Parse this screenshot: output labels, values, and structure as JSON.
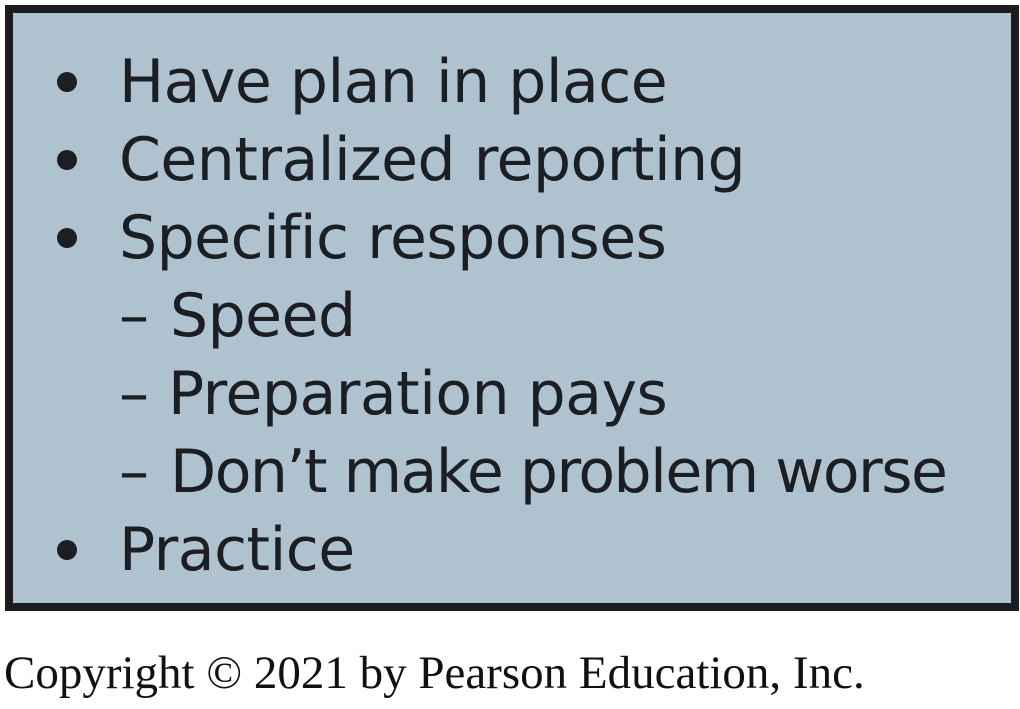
{
  "slide": {
    "items": [
      {
        "type": "bullet",
        "text": "Have plan in place"
      },
      {
        "type": "bullet",
        "text": "Centralized reporting"
      },
      {
        "type": "bullet",
        "text": "Specific responses"
      },
      {
        "type": "sub",
        "marker": "–",
        "text": "Speed"
      },
      {
        "type": "sub",
        "marker": "–",
        "text": "Preparation pays"
      },
      {
        "type": "sub",
        "marker": "–",
        "text": "Don’t make problem worse"
      },
      {
        "type": "bullet",
        "text": "Practice"
      }
    ]
  },
  "colors": {
    "panel_background": "#aec3cf",
    "panel_border": "#1c1c1c",
    "text": "#1c1e21"
  },
  "copyright": "Copyright © 2021 by Pearson Education, Inc."
}
